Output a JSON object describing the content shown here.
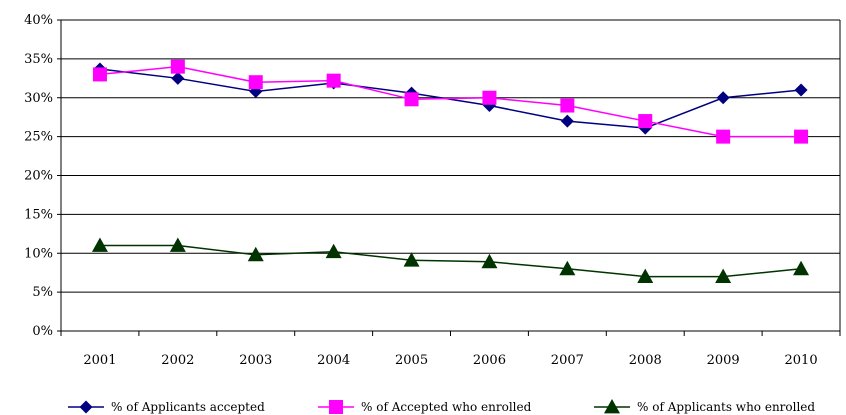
{
  "chart_data": {
    "type": "line",
    "categories": [
      "2001",
      "2002",
      "2003",
      "2004",
      "2005",
      "2006",
      "2007",
      "2008",
      "2009",
      "2010"
    ],
    "ylim": [
      0,
      40
    ],
    "yticks": [
      0,
      5,
      10,
      15,
      20,
      25,
      30,
      35,
      40
    ],
    "ytick_format": "%",
    "grid": true,
    "legend_position": "bottom",
    "series": [
      {
        "name": "% of Applicants accepted",
        "values": [
          33.7,
          32.5,
          30.8,
          31.9,
          30.6,
          29.0,
          27.0,
          26.1,
          30.0,
          31.0
        ],
        "color": "#000080",
        "marker": "diamond"
      },
      {
        "name": "% of Accepted  who enrolled",
        "values": [
          33.0,
          34.0,
          32.0,
          32.2,
          29.8,
          30.0,
          29.0,
          27.0,
          25.0,
          25.0
        ],
        "color": "#ff00ff",
        "marker": "square"
      },
      {
        "name": "% of Applicants  who enrolled",
        "values": [
          11.0,
          11.0,
          9.8,
          10.2,
          9.1,
          8.9,
          8.0,
          7.0,
          7.0,
          8.0
        ],
        "color": "#003300",
        "marker": "triangle"
      }
    ]
  }
}
